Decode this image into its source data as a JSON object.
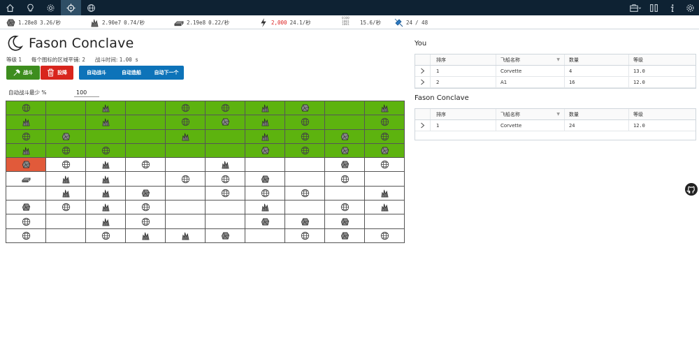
{
  "nav": {
    "left_icons": [
      "home-icon",
      "lightbulb-icon",
      "gear-icon",
      "crosshair-icon",
      "globe-icon"
    ],
    "right_icons": [
      "briefcase-icon",
      "columns-icon",
      "info-icon",
      "settings-icon"
    ]
  },
  "resources": [
    {
      "icon": "metal-ore-icon",
      "amount": "1.28e8",
      "rate": "3.26/秒"
    },
    {
      "icon": "crystal-icon",
      "amount": "2.90e7",
      "rate": "0.74/秒"
    },
    {
      "icon": "alloy-icon",
      "amount": "2.19e8",
      "rate": "0.22/秒"
    },
    {
      "icon": "energy-icon",
      "amount": "2,000",
      "rate": "24.1/秒"
    },
    {
      "icon": "data-icon",
      "amount": "",
      "rate": "15.6/秒"
    },
    {
      "icon": "satellite-icon",
      "amount": "24",
      "rate": "/ 48"
    }
  ],
  "enemy": {
    "name": "Fason Conclave",
    "level_label": "等级",
    "level_value": "1",
    "tiles_label": "每个图标的区域平铺:",
    "tiles_value": "2",
    "time_label": "战斗时间:",
    "time_value": "1.00 s"
  },
  "buttons": {
    "fight": "战斗",
    "surrender": "投降",
    "auto_fight": "自动战斗",
    "auto_build": "自动造船",
    "auto_next": "自动下一个"
  },
  "auto_min": {
    "label": "自动战斗最少 %",
    "value": "100"
  },
  "grid": [
    [
      "G:globe",
      "G:",
      "G:crystal",
      "G:",
      "G:globe",
      "G:globe",
      "G:crystal",
      "G:ore",
      "G:",
      "G:crystal"
    ],
    [
      "G:crystal",
      "G:",
      "G:crystal",
      "G:",
      "G:globe",
      "G:ore",
      "G:crystal",
      "G:globe",
      "G:",
      "G:globe"
    ],
    [
      "G:globe",
      "G:ore",
      "G:",
      "G:",
      "G:crystal",
      "G:",
      "G:crystal",
      "G:globe",
      "G:ore",
      "G:globe"
    ],
    [
      "G:crystal",
      "G:globe",
      "G:globe",
      "G:",
      "G:",
      "G:",
      "G:ore",
      "G:globe",
      "G:ore",
      "G:ore"
    ],
    [
      "O:ore",
      "W:globe",
      "W:crystal",
      "W:globe",
      "W:",
      "W:crystal",
      "W:",
      "W:",
      "W:ore",
      "W:globe"
    ],
    [
      "W:alloy",
      "W:crystal",
      "W:crystal",
      "W:",
      "W:globe",
      "W:globe",
      "W:ore",
      "W:",
      "W:globe",
      "W:"
    ],
    [
      "W:",
      "W:crystal",
      "W:crystal",
      "W:ore",
      "W:",
      "W:globe",
      "W:globe",
      "W:globe",
      "W:",
      "W:crystal"
    ],
    [
      "W:ore",
      "W:globe",
      "W:crystal",
      "W:globe",
      "W:",
      "W:",
      "W:crystal",
      "W:",
      "W:globe",
      "W:crystal"
    ],
    [
      "W:globe",
      "W:",
      "W:crystal",
      "W:globe",
      "W:",
      "W:",
      "W:ore",
      "W:ore",
      "W:ore",
      "W:"
    ],
    [
      "W:globe",
      "W:",
      "W:globe",
      "W:crystal",
      "W:crystal",
      "W:ore",
      "W:",
      "W:globe",
      "W:ore",
      "W:globe"
    ]
  ],
  "fleets": {
    "you_title": "You",
    "enemy_title": "Fason Conclave",
    "columns": {
      "order": "排序",
      "ship": "飞船名称",
      "count": "数量",
      "level": "等级"
    },
    "you_rows": [
      {
        "order": "1",
        "ship": "Corvette",
        "count": "4",
        "level": "13.0"
      },
      {
        "order": "2",
        "ship": "A1",
        "count": "16",
        "level": "12.0"
      }
    ],
    "enemy_rows": [
      {
        "order": "1",
        "ship": "Corvette",
        "count": "24",
        "level": "12.0"
      }
    ]
  },
  "colors": {
    "nav_bg": "#0e2233",
    "player_cell": "#5db30f",
    "active_cell": "#e15a3a",
    "fight_button": "#3d8d1e",
    "surrender_button": "#d8251d",
    "auto_group": "#0d73b9"
  }
}
